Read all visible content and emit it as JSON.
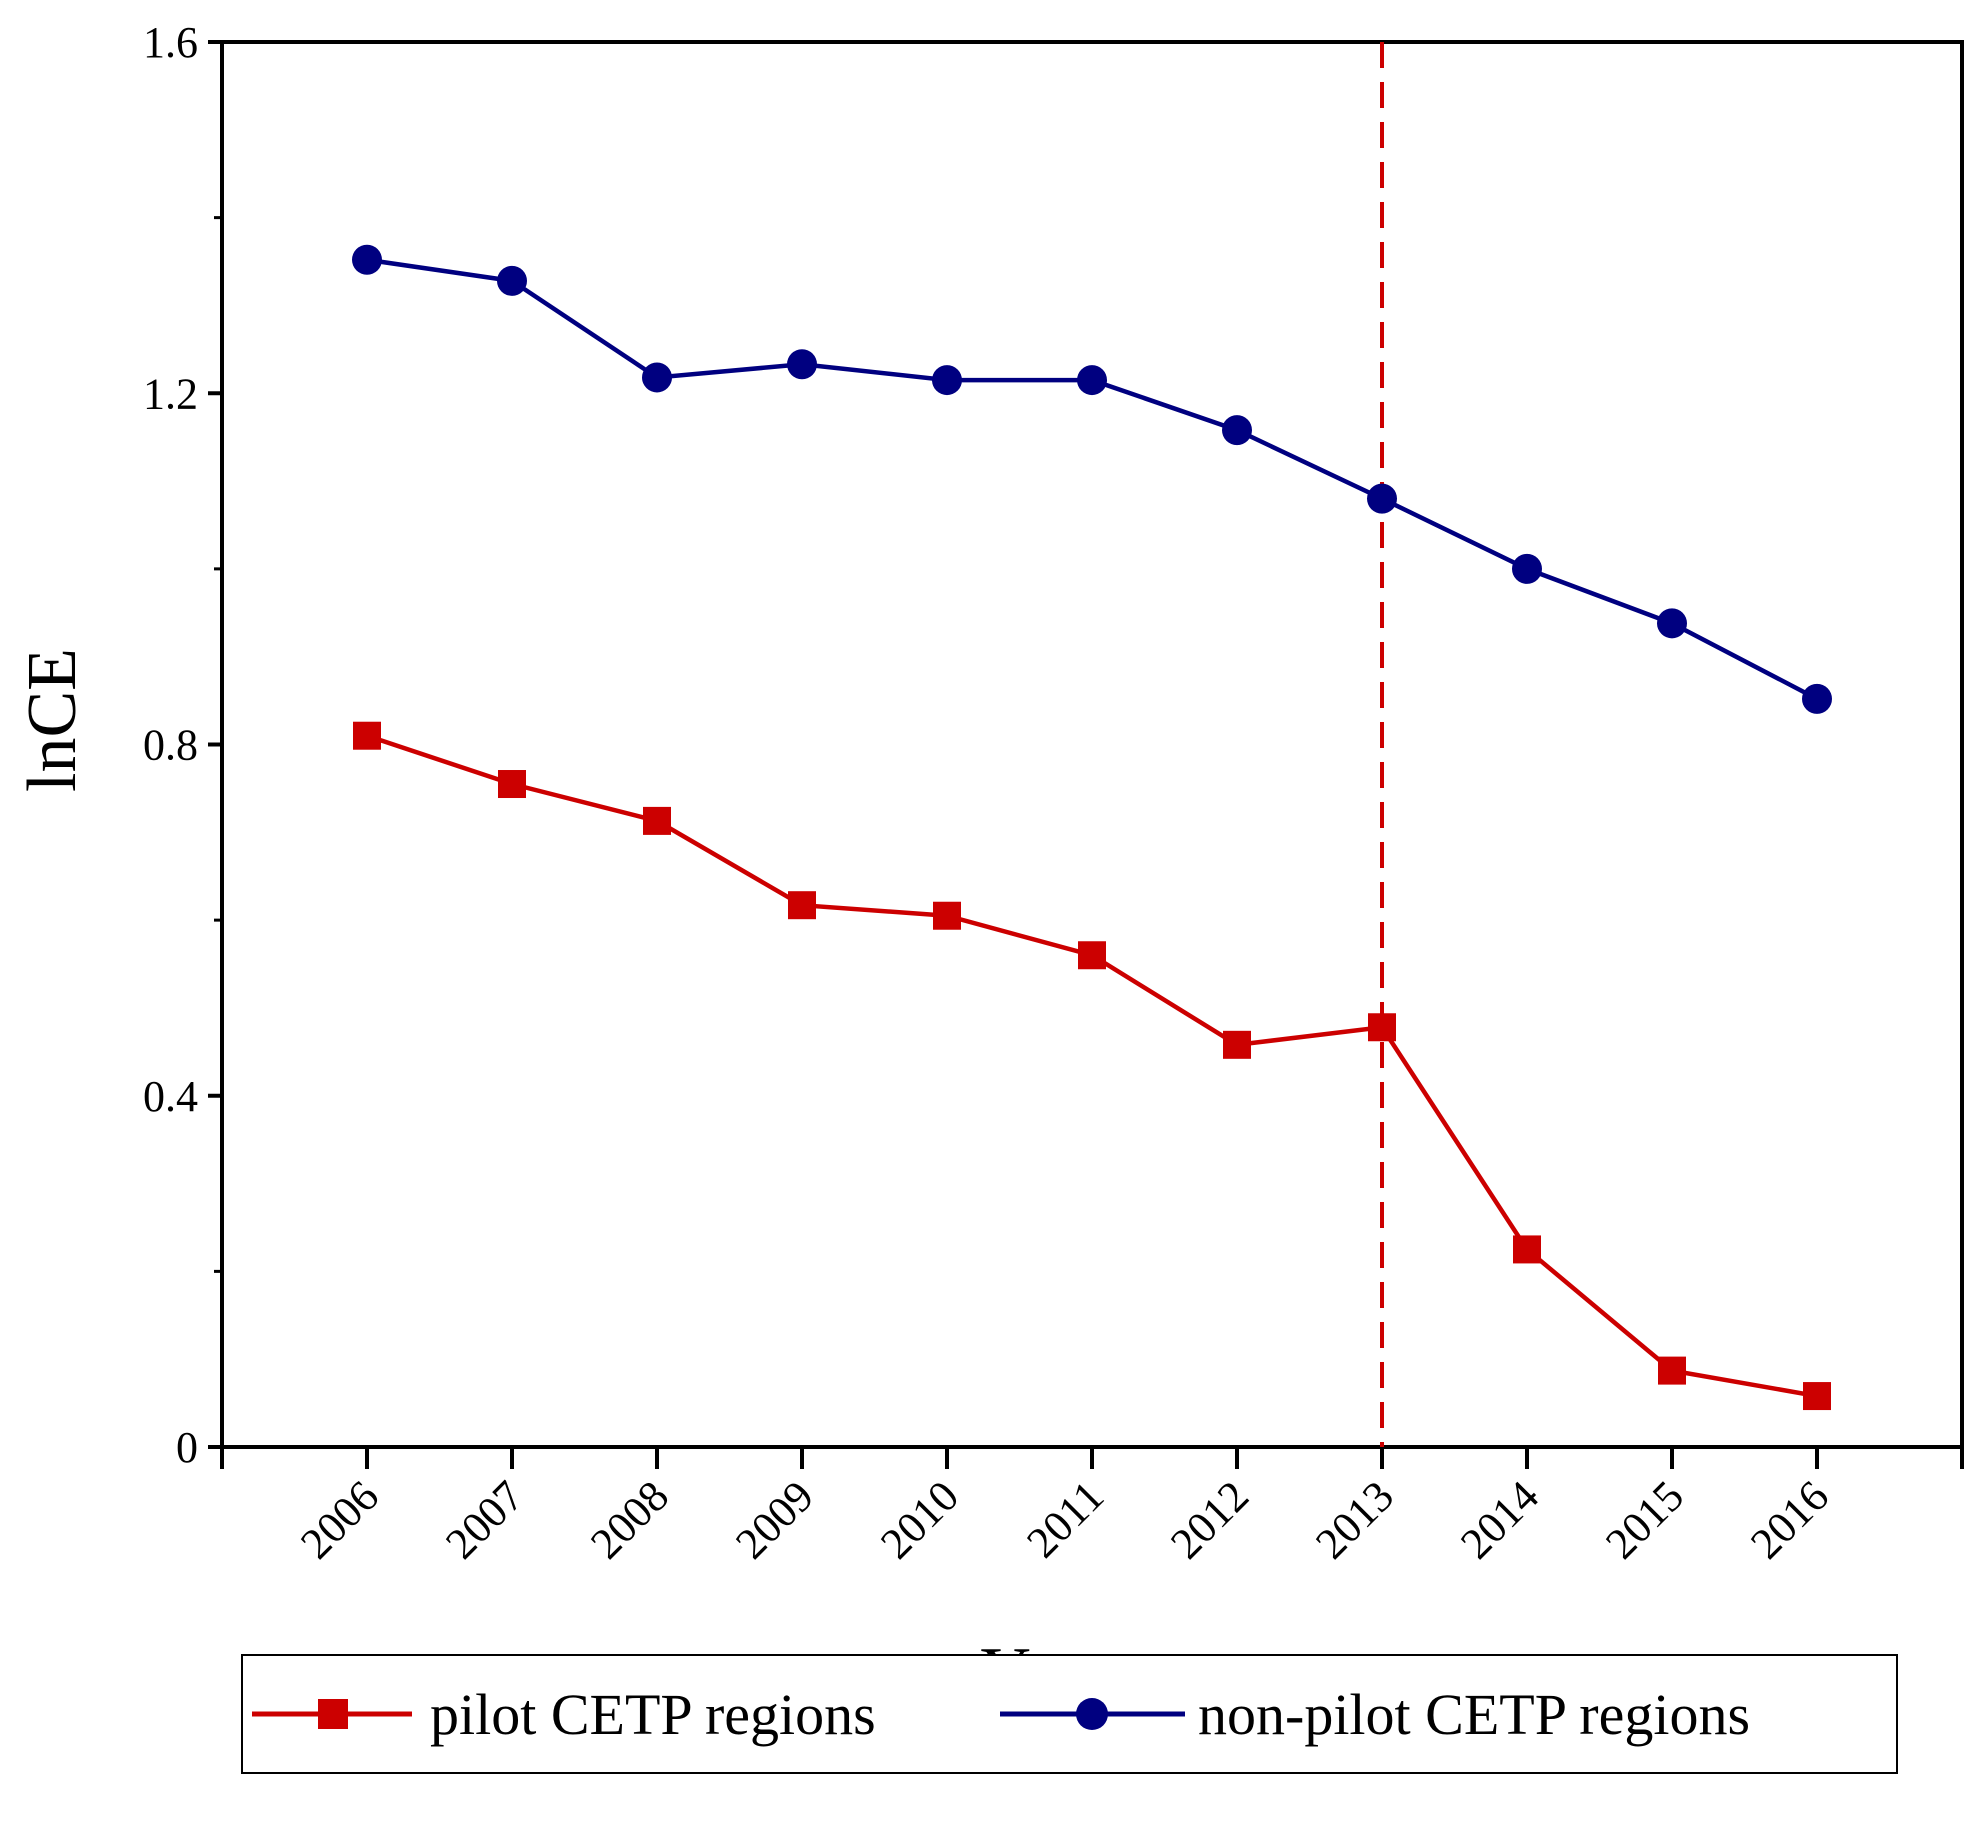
{
  "chart_data": {
    "type": "line",
    "title": "",
    "xlabel": "Year",
    "ylabel": "lnCE",
    "x": [
      "2006",
      "2007",
      "2008",
      "2009",
      "2010",
      "2011",
      "2012",
      "2013",
      "2014",
      "2015",
      "2016"
    ],
    "xlim": [
      2005,
      2017
    ],
    "ylim": [
      0,
      1.6
    ],
    "yticks": [
      "0",
      "0.4",
      "0.8",
      "1.2",
      "1.6"
    ],
    "grid": false,
    "legend_position": "bottom",
    "series": [
      {
        "name": "pilot CETP regions",
        "marker": "square",
        "color": "#cc0000",
        "values": [
          0.81,
          0.755,
          0.713,
          0.617,
          0.605,
          0.56,
          0.458,
          0.478,
          0.225,
          0.087,
          0.058
        ]
      },
      {
        "name": "non-pilot CETP regions",
        "marker": "circle",
        "color": "#000080",
        "values": [
          1.352,
          1.328,
          1.218,
          1.233,
          1.215,
          1.215,
          1.158,
          1.08,
          1.0,
          0.938,
          0.852
        ]
      }
    ],
    "annotations": [
      {
        "type": "vertical-dashed-line",
        "x": "2013",
        "color": "#cc0000"
      }
    ]
  }
}
